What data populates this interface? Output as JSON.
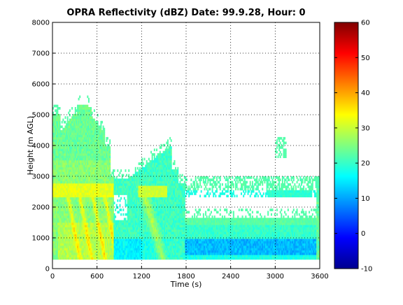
{
  "chart_data": {
    "type": "heatmap",
    "title": "OPRA Reflectivity (dBZ)  Date: 99.9.28, Hour: 0",
    "xlabel": "Time (s)",
    "ylabel": "Height (m AGL)",
    "xlim": [
      0,
      3600
    ],
    "ylim": [
      0,
      8000
    ],
    "x_ticks": [
      "0",
      "600",
      "1200",
      "1800",
      "2400",
      "3000",
      "3600"
    ],
    "y_ticks": [
      "0",
      "1000",
      "2000",
      "3000",
      "4000",
      "5000",
      "6000",
      "7000",
      "8000"
    ],
    "grid": true,
    "colorbar": {
      "min": -10,
      "max": 60,
      "ticks": [
        "-10",
        "0",
        "10",
        "20",
        "30",
        "40",
        "50",
        "60"
      ],
      "colormap": "jet"
    },
    "data_notes_dBZ": [
      {
        "time": [
          0,
          800
        ],
        "height": [
          300,
          5000
        ],
        "value_dBZ": 25
      },
      {
        "time": [
          80,
          700
        ],
        "height": [
          300,
          2700
        ],
        "value_dBZ": 32
      },
      {
        "time": [
          0,
          850
        ],
        "height": [
          2400,
          2700
        ],
        "value_dBZ": 31
      },
      {
        "time": [
          800,
          1700
        ],
        "height": [
          300,
          3800
        ],
        "value_dBZ": 20
      },
      {
        "time": [
          1150,
          1500
        ],
        "height": [
          300,
          2700
        ],
        "value_dBZ": 28
      },
      {
        "time": [
          1750,
          3600
        ],
        "height": [
          300,
          1600
        ],
        "value_dBZ": 18
      },
      {
        "time": [
          1900,
          3600
        ],
        "height": [
          300,
          800
        ],
        "value_dBZ": 10
      },
      {
        "time": [
          1750,
          3600
        ],
        "height": [
          2400,
          3000
        ],
        "value_dBZ": 19
      },
      {
        "time": [
          3000,
          3150
        ],
        "height": [
          3700,
          4200
        ],
        "value_dBZ": 22
      }
    ]
  }
}
